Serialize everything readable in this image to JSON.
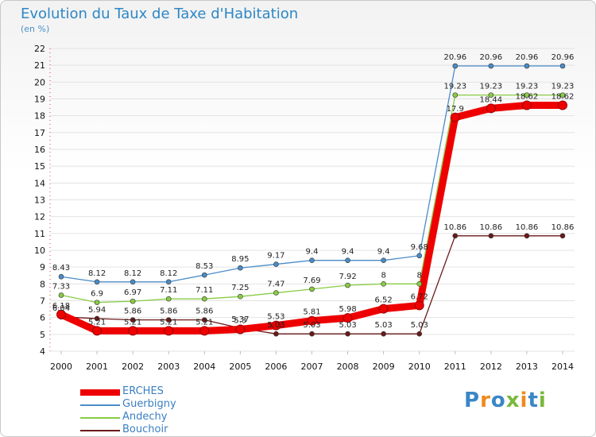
{
  "title": "Evolution du Taux de Taxe d'Habitation",
  "unit_label": "(en %)",
  "brand": {
    "text": "Proxiti",
    "colors": [
      "#3a86c6",
      "#f08a1c",
      "#3a86c6",
      "#7ab83a",
      "#f08a1c",
      "#3a86c6",
      "#7ab83a"
    ]
  },
  "chart_data": {
    "type": "line",
    "title": "Evolution du Taux de Taxe d'Habitation",
    "ylabel": "(en %)",
    "x": [
      "2000",
      "2001",
      "2002",
      "2003",
      "2004",
      "2005",
      "2006",
      "2007",
      "2008",
      "2009",
      "2010",
      "2011",
      "2012",
      "2013",
      "2014"
    ],
    "ylim": [
      4,
      22
    ],
    "yticks": [
      4,
      5,
      6,
      7,
      8,
      9,
      10,
      11,
      12,
      13,
      14,
      15,
      16,
      17,
      18,
      19,
      20,
      21,
      22
    ],
    "grid": "horizontal",
    "legend_position": "bottom-left",
    "series": [
      {
        "name": "ERCHES",
        "color": "#ee0000",
        "values": [
          6.18,
          5.21,
          5.21,
          5.21,
          5.21,
          5.3,
          5.53,
          5.81,
          5.98,
          6.52,
          6.72,
          17.9,
          18.44,
          18.62,
          18.62
        ],
        "labels": [
          "6.18",
          "5.21",
          "5.21",
          "5.21",
          "5.21",
          "5.3",
          "5.53",
          "5.81",
          "5.98",
          "6.52",
          "6.72",
          "17.9",
          "18.44",
          "18.62",
          "18.62"
        ]
      },
      {
        "name": "Guerbigny",
        "color": "#4a8cc8",
        "values": [
          8.43,
          8.12,
          8.12,
          8.12,
          8.53,
          8.95,
          9.17,
          9.4,
          9.4,
          9.4,
          9.68,
          20.96,
          20.96,
          20.96,
          20.96
        ],
        "labels": [
          "8.43",
          "8.12",
          "8.12",
          "8.12",
          "8.53",
          "8.95",
          "9.17",
          "9.4",
          "9.4",
          "9.4",
          "9.68",
          "20.96",
          "20.96",
          "20.96",
          "20.96"
        ]
      },
      {
        "name": "Andechy",
        "color": "#88cc44",
        "values": [
          7.33,
          6.9,
          6.97,
          7.11,
          7.11,
          7.25,
          7.47,
          7.69,
          7.92,
          8,
          8,
          19.23,
          19.23,
          19.23,
          19.23
        ],
        "labels": [
          "7.33",
          "6.9",
          "6.97",
          "7.11",
          "7.11",
          "7.25",
          "7.47",
          "7.69",
          "7.92",
          "8",
          "8",
          "19.23",
          "19.23",
          "19.23",
          "19.23"
        ]
      },
      {
        "name": "Bouchoir",
        "color": "#6a1a1a",
        "values": [
          6.04,
          5.94,
          5.86,
          5.86,
          5.86,
          5.37,
          5.03,
          5.03,
          5.03,
          5.03,
          5.03,
          10.86,
          10.86,
          10.86,
          10.86
        ],
        "labels": [
          "6.04",
          "5.94",
          "5.86",
          "5.86",
          "5.86",
          "5.37",
          "5.03",
          "5.03",
          "5.03",
          "5.03",
          "5.03",
          "10.86",
          "10.86",
          "10.86",
          "10.86"
        ]
      }
    ]
  }
}
